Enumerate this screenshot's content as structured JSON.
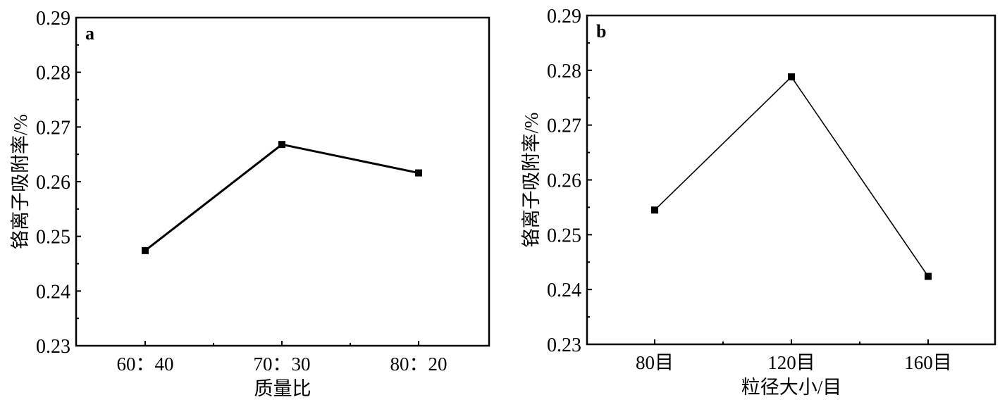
{
  "chart_data": [
    {
      "type": "line",
      "panel_label": "a",
      "xlabel": "质量比",
      "ylabel": "铬离子吸附率/%",
      "categories": [
        "60：40",
        "70：30",
        "80：20"
      ],
      "series": [
        {
          "values": [
            0.2474,
            0.2668,
            0.2616
          ]
        }
      ],
      "ylim": [
        0.23,
        0.29
      ],
      "yticks": [
        "0.23",
        "0.24",
        "0.25",
        "0.26",
        "0.27",
        "0.28",
        "0.29"
      ],
      "grid": false,
      "marker": "square",
      "color": "#000000"
    },
    {
      "type": "line",
      "panel_label": "b",
      "xlabel": "粒径大小/目",
      "ylabel": "铬离子吸附率/%",
      "categories": [
        "80目",
        "120目",
        "160目"
      ],
      "series": [
        {
          "values": [
            0.2545,
            0.2788,
            0.2424
          ]
        }
      ],
      "ylim": [
        0.23,
        0.29
      ],
      "yticks": [
        "0.23",
        "0.24",
        "0.25",
        "0.26",
        "0.27",
        "0.28",
        "0.29"
      ],
      "grid": false,
      "marker": "square",
      "color": "#000000"
    }
  ]
}
